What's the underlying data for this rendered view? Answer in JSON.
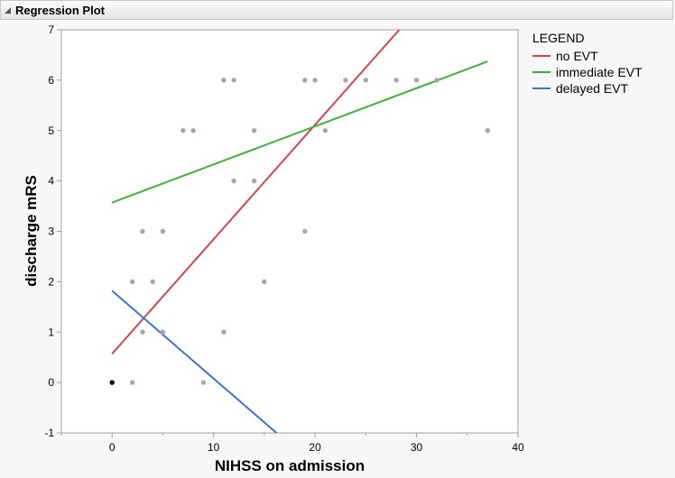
{
  "window": {
    "title": "Regression Plot"
  },
  "chart_data": {
    "type": "scatter",
    "xlabel": "NIHSS on admission",
    "ylabel": "discharge mRS",
    "xlim": [
      -5,
      40
    ],
    "ylim": [
      -1,
      7
    ],
    "xticks": [
      0,
      10,
      20,
      30,
      40
    ],
    "yticks": [
      -1,
      0,
      1,
      2,
      3,
      4,
      5,
      6,
      7
    ],
    "grid": false,
    "legend": {
      "title": "LEGEND",
      "placement": "right"
    },
    "points": [
      [
        0,
        0
      ],
      [
        2,
        0
      ],
      [
        9,
        0
      ],
      [
        3,
        1
      ],
      [
        5,
        1
      ],
      [
        11,
        1
      ],
      [
        2,
        2
      ],
      [
        4,
        2
      ],
      [
        15,
        2
      ],
      [
        3,
        3
      ],
      [
        5,
        3
      ],
      [
        19,
        3
      ],
      [
        12,
        4
      ],
      [
        14,
        4
      ],
      [
        7,
        5
      ],
      [
        8,
        5
      ],
      [
        14,
        5
      ],
      [
        21,
        5
      ],
      [
        37,
        5
      ],
      [
        11,
        6
      ],
      [
        12,
        6
      ],
      [
        19,
        6
      ],
      [
        20,
        6
      ],
      [
        23,
        6
      ],
      [
        25,
        6
      ],
      [
        28,
        6
      ],
      [
        30,
        6
      ],
      [
        32,
        6
      ]
    ],
    "highlighted_point": [
      0,
      0
    ],
    "point_color": "#a6a6a6",
    "series": [
      {
        "name": "no EVT",
        "color": "#d0454f",
        "x": [
          0,
          28.3
        ],
        "y": [
          0.57,
          7
        ]
      },
      {
        "name": "immediate EVT",
        "color": "#3db03d",
        "x": [
          0,
          37
        ],
        "y": [
          3.57,
          6.37
        ]
      },
      {
        "name": "delayed EVT",
        "color": "#3f6fdc",
        "x": [
          0,
          16.2
        ],
        "y": [
          1.82,
          -1
        ]
      }
    ]
  }
}
